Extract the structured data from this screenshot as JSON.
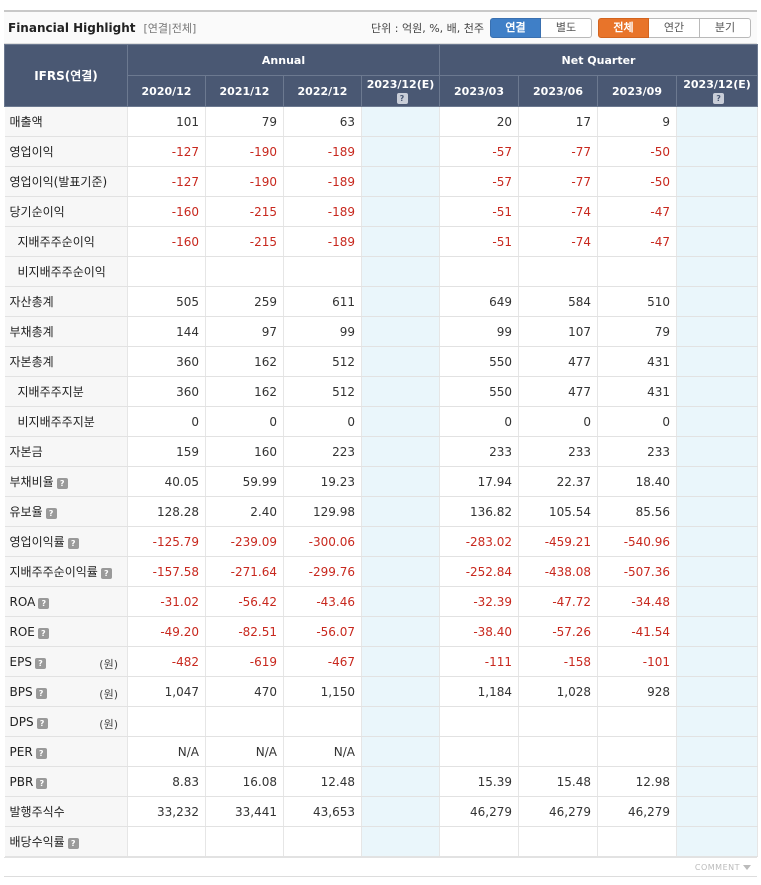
{
  "header": {
    "title": "Financial Highlight",
    "subtitle": "[연결|전체]",
    "unit": "단위 : 억원, %, 배, 천주",
    "consolidation_buttons": [
      "연결",
      "별도"
    ],
    "period_buttons": [
      "전체",
      "연간",
      "분기"
    ]
  },
  "table": {
    "corner": "IFRS(연결)",
    "group_annual": "Annual",
    "group_quarter": "Net Quarter",
    "columns": [
      "2020/12",
      "2021/12",
      "2022/12",
      "2023/12(E)",
      "2023/03",
      "2023/06",
      "2023/09",
      "2023/12(E)"
    ],
    "help_icon": "?",
    "rows": [
      {
        "label": "매출액",
        "values": [
          "101",
          "79",
          "63",
          "",
          "20",
          "17",
          "9",
          ""
        ]
      },
      {
        "label": "영업이익",
        "values": [
          "-127",
          "-190",
          "-189",
          "",
          "-57",
          "-77",
          "-50",
          ""
        ]
      },
      {
        "label": "영업이익(발표기준)",
        "values": [
          "-127",
          "-190",
          "-189",
          "",
          "-57",
          "-77",
          "-50",
          ""
        ]
      },
      {
        "label": "당기순이익",
        "values": [
          "-160",
          "-215",
          "-189",
          "",
          "-51",
          "-74",
          "-47",
          ""
        ]
      },
      {
        "label": "지배주주순이익",
        "sub": true,
        "values": [
          "-160",
          "-215",
          "-189",
          "",
          "-51",
          "-74",
          "-47",
          ""
        ]
      },
      {
        "label": "비지배주주순이익",
        "sub": true,
        "values": [
          "",
          "",
          "",
          "",
          "",
          "",
          "",
          ""
        ]
      },
      {
        "label": "자산총계",
        "values": [
          "505",
          "259",
          "611",
          "",
          "649",
          "584",
          "510",
          ""
        ]
      },
      {
        "label": "부채총계",
        "values": [
          "144",
          "97",
          "99",
          "",
          "99",
          "107",
          "79",
          ""
        ]
      },
      {
        "label": "자본총계",
        "values": [
          "360",
          "162",
          "512",
          "",
          "550",
          "477",
          "431",
          ""
        ]
      },
      {
        "label": "지배주주지분",
        "sub": true,
        "values": [
          "360",
          "162",
          "512",
          "",
          "550",
          "477",
          "431",
          ""
        ]
      },
      {
        "label": "비지배주주지분",
        "sub": true,
        "values": [
          "0",
          "0",
          "0",
          "",
          "0",
          "0",
          "0",
          ""
        ]
      },
      {
        "label": "자본금",
        "values": [
          "159",
          "160",
          "223",
          "",
          "233",
          "233",
          "233",
          ""
        ]
      },
      {
        "label": "부채비율",
        "help": true,
        "values": [
          "40.05",
          "59.99",
          "19.23",
          "",
          "17.94",
          "22.37",
          "18.40",
          ""
        ]
      },
      {
        "label": "유보율",
        "help": true,
        "values": [
          "128.28",
          "2.40",
          "129.98",
          "",
          "136.82",
          "105.54",
          "85.56",
          ""
        ]
      },
      {
        "label": "영업이익률",
        "help": true,
        "values": [
          "-125.79",
          "-239.09",
          "-300.06",
          "",
          "-283.02",
          "-459.21",
          "-540.96",
          ""
        ]
      },
      {
        "label": "지배주주순이익률",
        "help": true,
        "values": [
          "-157.58",
          "-271.64",
          "-299.76",
          "",
          "-252.84",
          "-438.08",
          "-507.36",
          ""
        ]
      },
      {
        "label": "ROA",
        "help": true,
        "values": [
          "-31.02",
          "-56.42",
          "-43.46",
          "",
          "-32.39",
          "-47.72",
          "-34.48",
          ""
        ]
      },
      {
        "label": "ROE",
        "help": true,
        "values": [
          "-49.20",
          "-82.51",
          "-56.07",
          "",
          "-38.40",
          "-57.26",
          "-41.54",
          ""
        ]
      },
      {
        "label": "EPS",
        "help": true,
        "unit": "(원)",
        "values": [
          "-482",
          "-619",
          "-467",
          "",
          "-111",
          "-158",
          "-101",
          ""
        ]
      },
      {
        "label": "BPS",
        "help": true,
        "unit": "(원)",
        "values": [
          "1,047",
          "470",
          "1,150",
          "",
          "1,184",
          "1,028",
          "928",
          ""
        ]
      },
      {
        "label": "DPS",
        "help": true,
        "unit": "(원)",
        "values": [
          "",
          "",
          "",
          "",
          "",
          "",
          "",
          ""
        ]
      },
      {
        "label": "PER",
        "help": true,
        "values": [
          "N/A",
          "N/A",
          "N/A",
          "",
          "",
          "",
          "",
          ""
        ]
      },
      {
        "label": "PBR",
        "help": true,
        "values": [
          "8.83",
          "16.08",
          "12.48",
          "",
          "15.39",
          "15.48",
          "12.98",
          ""
        ]
      },
      {
        "label": "발행주식수",
        "values": [
          "33,232",
          "33,441",
          "43,653",
          "",
          "46,279",
          "46,279",
          "46,279",
          ""
        ]
      },
      {
        "label": "배당수익률",
        "help": true,
        "values": [
          "",
          "",
          "",
          "",
          "",
          "",
          "",
          ""
        ]
      }
    ]
  },
  "footer": {
    "comment": "COMMENT"
  },
  "colors": {
    "header_bg": "#4a5873",
    "negative": "#c8281e",
    "estimate_bg": "#eaf6fb",
    "blue_btn": "#3f7fc7",
    "orange_btn": "#e8742a"
  }
}
